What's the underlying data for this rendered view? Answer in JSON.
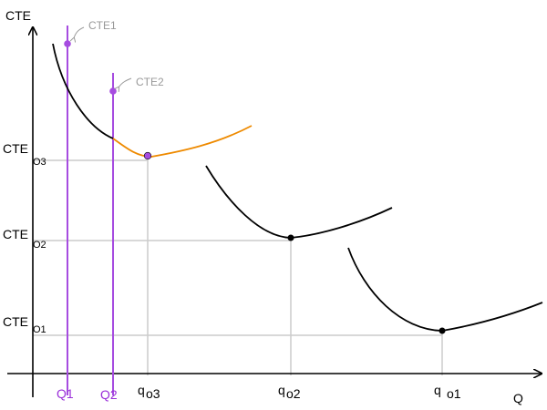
{
  "axes": {
    "y_label": "CTE",
    "x_label": "Q"
  },
  "y_ticks": [
    {
      "main": "CTE",
      "sub": "O3"
    },
    {
      "main": "CTE",
      "sub": "O2"
    },
    {
      "main": "CTE",
      "sub": "O1"
    }
  ],
  "x_ticks": [
    {
      "main": "Q1"
    },
    {
      "main": "Q2"
    },
    {
      "main": "q",
      "sub": "o3"
    },
    {
      "main": "q",
      "sub": "o2"
    },
    {
      "main": "q",
      "sub": "o1"
    }
  ],
  "annotations": {
    "cte1": "CTE1",
    "cte2": "CTE2"
  },
  "colors": {
    "axis": "#000000",
    "guide": "#cccccc",
    "curve": "#000000",
    "highlight_segment": "#ee8a00",
    "plant_size_lines": "#a64ce0",
    "annotation": "#999999"
  }
}
